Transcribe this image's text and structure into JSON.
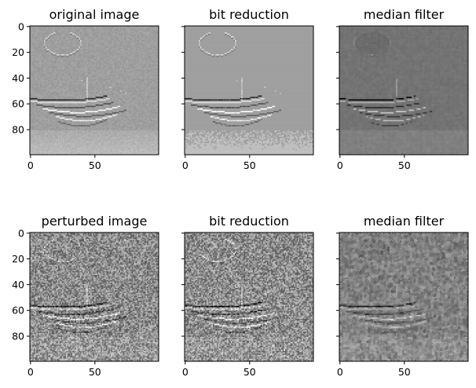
{
  "figure": {
    "background": "#ffffff",
    "colormap": "gray",
    "image_size": [
      100,
      100
    ],
    "panels": [
      {
        "title": "original image",
        "row": 0,
        "col": 0,
        "x_ticks": [
          "0",
          "50"
        ],
        "y_ticks": [
          "0",
          "20",
          "40",
          "60",
          "80"
        ],
        "content": "grayscale ultrasound-like image, smooth mid-gray background, dotted bright loop upper-left, dark and bright curved streaks across lower middle",
        "style": {
          "base_level": 0.62,
          "noise": 0.035,
          "blur": false,
          "quantized": false
        }
      },
      {
        "title": "bit reduction",
        "row": 0,
        "col": 1,
        "x_ticks": [
          "0",
          "50"
        ],
        "y_ticks": [],
        "content": "same image with reduced bit depth, slightly blockier speckle",
        "style": {
          "base_level": 0.62,
          "noise": 0.04,
          "blur": false,
          "quantized": true
        }
      },
      {
        "title": "median filter",
        "row": 0,
        "col": 2,
        "x_ticks": [
          "0",
          "50"
        ],
        "y_ticks": [],
        "content": "median filtered image, darker background, smoothed streaks with enhanced contrast",
        "style": {
          "base_level": 0.45,
          "noise": 0.03,
          "blur": true,
          "quantized": false
        }
      },
      {
        "title": "perturbed image",
        "row": 1,
        "col": 0,
        "x_ticks": [
          "0",
          "50"
        ],
        "y_ticks": [
          "0",
          "20",
          "40",
          "60",
          "80"
        ],
        "content": "adversarially perturbed image with strong textured noise overlay, faint loop and streaks still visible",
        "style": {
          "base_level": 0.55,
          "noise": 0.22,
          "blur": false,
          "quantized": false
        }
      },
      {
        "title": "bit reduction",
        "row": 1,
        "col": 1,
        "x_ticks": [
          "0",
          "50"
        ],
        "y_ticks": [],
        "content": "perturbed image after bit reduction, noise texture persists",
        "style": {
          "base_level": 0.55,
          "noise": 0.22,
          "blur": false,
          "quantized": true
        }
      },
      {
        "title": "median filter",
        "row": 1,
        "col": 2,
        "x_ticks": [
          "0",
          "50"
        ],
        "y_ticks": [],
        "content": "perturbed image after median filter, smoother blotchy texture with visible streaks",
        "style": {
          "base_level": 0.5,
          "noise": 0.16,
          "blur": true,
          "quantized": false
        }
      }
    ]
  }
}
